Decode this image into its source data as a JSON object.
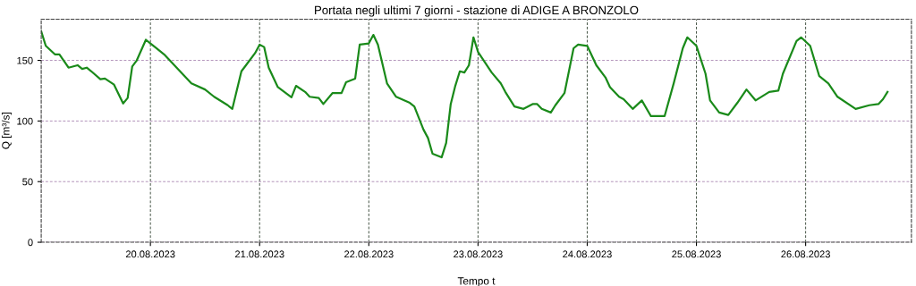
{
  "chart_data": {
    "type": "line",
    "title": "Portata negli ultimi 7 giorni - stazione di ADIGE A BRONZOLO",
    "xlabel": "Tempo t",
    "ylabel": "Q [m³/s]",
    "x": [
      "2023-08-19T00:00",
      "2023-08-19T01:00",
      "2023-08-19T03:00",
      "2023-08-19T04:00",
      "2023-08-19T06:00",
      "2023-08-19T08:00",
      "2023-08-19T09:00",
      "2023-08-19T10:00",
      "2023-08-19T11:00",
      "2023-08-19T13:00",
      "2023-08-19T14:00",
      "2023-08-19T16:00",
      "2023-08-19T18:00",
      "2023-08-19T19:00",
      "2023-08-19T20:00",
      "2023-08-19T21:00",
      "2023-08-19T23:00",
      "2023-08-20T00:00",
      "2023-08-20T01:00",
      "2023-08-20T03:00",
      "2023-08-20T06:00",
      "2023-08-20T09:00",
      "2023-08-20T12:00",
      "2023-08-20T14:00",
      "2023-08-20T17:00",
      "2023-08-20T18:00",
      "2023-08-20T20:00",
      "2023-08-20T21:00",
      "2023-08-20T23:00",
      "2023-08-21T00:00",
      "2023-08-21T01:00",
      "2023-08-21T02:00",
      "2023-08-21T04:00",
      "2023-08-21T07:00",
      "2023-08-21T08:00",
      "2023-08-21T10:00",
      "2023-08-21T11:00",
      "2023-08-21T13:00",
      "2023-08-21T14:00",
      "2023-08-21T16:00",
      "2023-08-21T18:00",
      "2023-08-21T19:00",
      "2023-08-21T21:00",
      "2023-08-21T22:00",
      "2023-08-22T00:00",
      "2023-08-22T01:00",
      "2023-08-22T02:00",
      "2023-08-22T04:00",
      "2023-08-22T06:00",
      "2023-08-22T09:00",
      "2023-08-22T10:00",
      "2023-08-22T12:00",
      "2023-08-22T13:00",
      "2023-08-22T14:00",
      "2023-08-22T16:00",
      "2023-08-22T17:00",
      "2023-08-22T18:00",
      "2023-08-22T19:00",
      "2023-08-22T20:00",
      "2023-08-22T21:00",
      "2023-08-22T22:00",
      "2023-08-22T23:00",
      "2023-08-23T00:00",
      "2023-08-23T03:00",
      "2023-08-23T05:00",
      "2023-08-23T06:00",
      "2023-08-23T08:00",
      "2023-08-23T10:00",
      "2023-08-23T12:00",
      "2023-08-23T13:00",
      "2023-08-23T14:00",
      "2023-08-23T16:00",
      "2023-08-23T17:00",
      "2023-08-23T19:00",
      "2023-08-23T21:00",
      "2023-08-23T22:00",
      "2023-08-24T00:00",
      "2023-08-24T02:00",
      "2023-08-24T04:00",
      "2023-08-24T05:00",
      "2023-08-24T07:00",
      "2023-08-24T08:00",
      "2023-08-24T10:00",
      "2023-08-24T12:00",
      "2023-08-24T14:00",
      "2023-08-24T17:00",
      "2023-08-24T19:00",
      "2023-08-24T21:00",
      "2023-08-24T22:00",
      "2023-08-25T00:00",
      "2023-08-25T02:00",
      "2023-08-25T03:00",
      "2023-08-25T05:00",
      "2023-08-25T07:00",
      "2023-08-25T09:00",
      "2023-08-25T11:00",
      "2023-08-25T13:00",
      "2023-08-25T16:00",
      "2023-08-25T18:00",
      "2023-08-25T19:00",
      "2023-08-25T22:00",
      "2023-08-25T23:00",
      "2023-08-26T01:00",
      "2023-08-26T03:00",
      "2023-08-26T05:00",
      "2023-08-26T07:00",
      "2023-08-26T11:00",
      "2023-08-26T14:00",
      "2023-08-26T16:00",
      "2023-08-26T17:00",
      "2023-08-26T18:00"
    ],
    "series": [
      {
        "color": "#1a8a1a",
        "values": [
          174,
          162,
          155,
          155,
          144,
          146,
          143,
          144,
          141,
          134.5,
          135,
          130,
          114.5,
          119,
          145,
          150,
          167,
          164,
          161,
          155,
          143,
          131,
          126,
          120,
          113,
          110,
          141,
          146,
          156,
          163,
          161,
          144,
          128,
          119.5,
          129,
          124,
          120,
          119,
          114,
          123,
          123,
          132,
          135,
          163,
          164,
          171,
          163,
          131,
          120,
          115,
          112,
          93,
          86,
          73,
          70,
          82,
          114,
          129,
          141,
          140,
          146,
          169,
          157,
          140,
          131,
          124,
          112,
          110,
          114,
          114,
          110,
          107,
          113,
          123,
          160,
          163,
          162,
          146,
          136,
          128,
          120,
          118,
          110,
          117,
          104,
          104,
          131,
          160,
          169,
          162,
          139,
          117,
          107,
          105,
          115,
          126,
          117,
          124,
          125,
          139,
          166,
          169,
          162,
          137,
          131,
          120,
          110,
          113,
          114,
          118,
          124
        ]
      }
    ],
    "xlim": [
      "2023-08-19T00:00",
      "2023-08-26T23:15"
    ],
    "xticks": [
      {
        "value": "2023-08-20",
        "label": "20.08.2023"
      },
      {
        "value": "2023-08-21",
        "label": "21.08.2023"
      },
      {
        "value": "2023-08-22",
        "label": "22.08.2023"
      },
      {
        "value": "2023-08-23",
        "label": "23.08.2023"
      },
      {
        "value": "2023-08-24",
        "label": "24.08.2023"
      },
      {
        "value": "2023-08-25",
        "label": "25.08.2023"
      },
      {
        "value": "2023-08-26",
        "label": "26.08.2023"
      }
    ],
    "ylim": [
      0,
      184
    ],
    "yticks": [
      0,
      50,
      100,
      150
    ],
    "grid": true,
    "line_style": "solid",
    "marker": "none"
  }
}
